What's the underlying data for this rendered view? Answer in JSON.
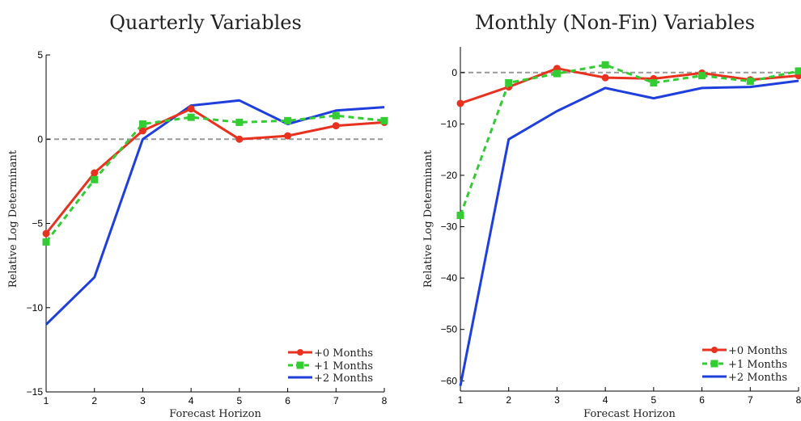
{
  "chart_data": [
    {
      "type": "line",
      "title": "Quarterly Variables",
      "xlabel": "Forecast Horizon",
      "ylabel": "Relative Log Determinant",
      "xlim": [
        1,
        8
      ],
      "ylim": [
        -15,
        5
      ],
      "xticks": [
        1,
        2,
        3,
        4,
        5,
        6,
        7,
        8
      ],
      "yticks": [
        5,
        0,
        -5,
        -10,
        -15
      ],
      "x": [
        1,
        2,
        3,
        4,
        5,
        6,
        7,
        8
      ],
      "reference_line": 0,
      "legend_position": "bottom-right",
      "series": [
        {
          "name": "+0 Months",
          "color": "#e8311f",
          "style": "solid",
          "marker": "circle",
          "values": [
            -5.6,
            -2.0,
            0.5,
            1.8,
            0.0,
            0.2,
            0.8,
            1.0
          ]
        },
        {
          "name": "+1 Months",
          "color": "#33cc33",
          "style": "dashed",
          "marker": "square",
          "values": [
            -6.1,
            -2.4,
            0.9,
            1.3,
            1.0,
            1.1,
            1.4,
            1.1
          ]
        },
        {
          "name": "+2 Months",
          "color": "#1f3fdd",
          "style": "solid",
          "marker": "none",
          "values": [
            -11.0,
            -8.2,
            0.0,
            2.0,
            2.3,
            0.9,
            1.7,
            1.9
          ]
        }
      ]
    },
    {
      "type": "line",
      "title": "Monthly (Non-Fin) Variables",
      "xlabel": "Forecast Horizon",
      "ylabel": "Relative Log Determinant",
      "xlim": [
        1,
        8
      ],
      "ylim": [
        -62,
        5
      ],
      "xticks": [
        1,
        2,
        3,
        4,
        5,
        6,
        7,
        8
      ],
      "yticks": [
        0,
        -10,
        -20,
        -30,
        -40,
        -50,
        -60
      ],
      "x": [
        1,
        2,
        3,
        4,
        5,
        6,
        7,
        8
      ],
      "reference_line": 0,
      "legend_position": "bottom-right",
      "series": [
        {
          "name": "+0 Months",
          "color": "#e8311f",
          "style": "solid",
          "marker": "circle",
          "values": [
            -6.0,
            -2.8,
            0.8,
            -1.0,
            -1.2,
            -0.1,
            -1.4,
            -0.6
          ]
        },
        {
          "name": "+1 Months",
          "color": "#33cc33",
          "style": "dashed",
          "marker": "square",
          "values": [
            -27.8,
            -2.0,
            -0.2,
            1.5,
            -2.0,
            -0.6,
            -1.7,
            0.3
          ]
        },
        {
          "name": "+2 Months",
          "color": "#1f3fdd",
          "style": "solid",
          "marker": "none",
          "values": [
            -61.0,
            -13.0,
            -7.5,
            -3.0,
            -5.0,
            -3.0,
            -2.8,
            -1.6
          ]
        }
      ]
    }
  ]
}
